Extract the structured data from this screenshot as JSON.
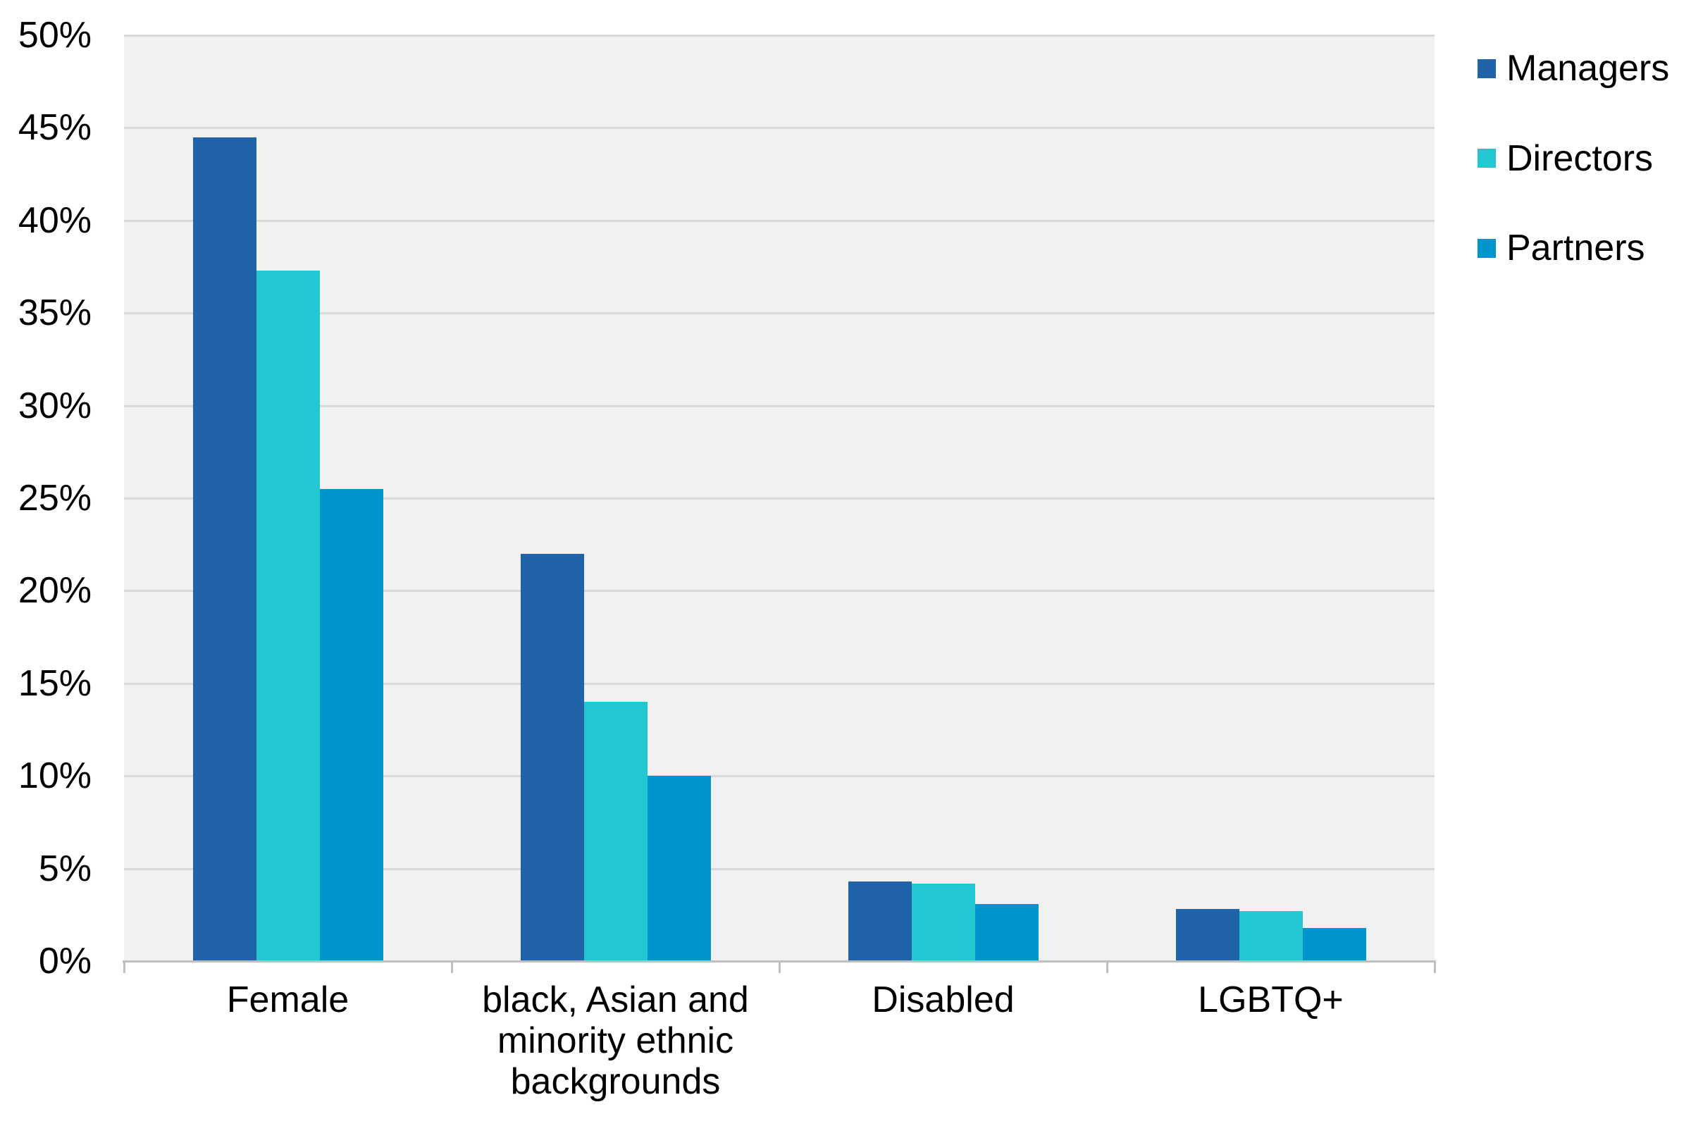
{
  "chart_data": {
    "type": "bar",
    "title": "",
    "xlabel": "",
    "ylabel": "",
    "categories": [
      "Female",
      "black, Asian and\nminority ethnic\nbackgrounds",
      "Disabled",
      "LGBTQ+"
    ],
    "series": [
      {
        "name": "Managers",
        "color": "#2163A8",
        "values": [
          44.5,
          22.0,
          4.3,
          2.8
        ]
      },
      {
        "name": "Directors",
        "color": "#23C7D2",
        "values": [
          37.3,
          14.0,
          4.2,
          2.7
        ]
      },
      {
        "name": "Partners",
        "color": "#0095CC",
        "values": [
          25.5,
          10.0,
          3.1,
          1.8
        ]
      }
    ],
    "ylim": [
      0,
      50
    ],
    "y_ticks": [
      "0%",
      "5%",
      "10%",
      "15%",
      "20%",
      "25%",
      "30%",
      "35%",
      "40%",
      "45%",
      "50%"
    ],
    "grid": true,
    "legend_position": "top-right"
  },
  "colors": {
    "plot_background": "#F1F1F1",
    "gridline": "#D9D9D9",
    "axis": "#BFBFBF",
    "text": "#000000",
    "page_background": "#FFFFFF"
  }
}
